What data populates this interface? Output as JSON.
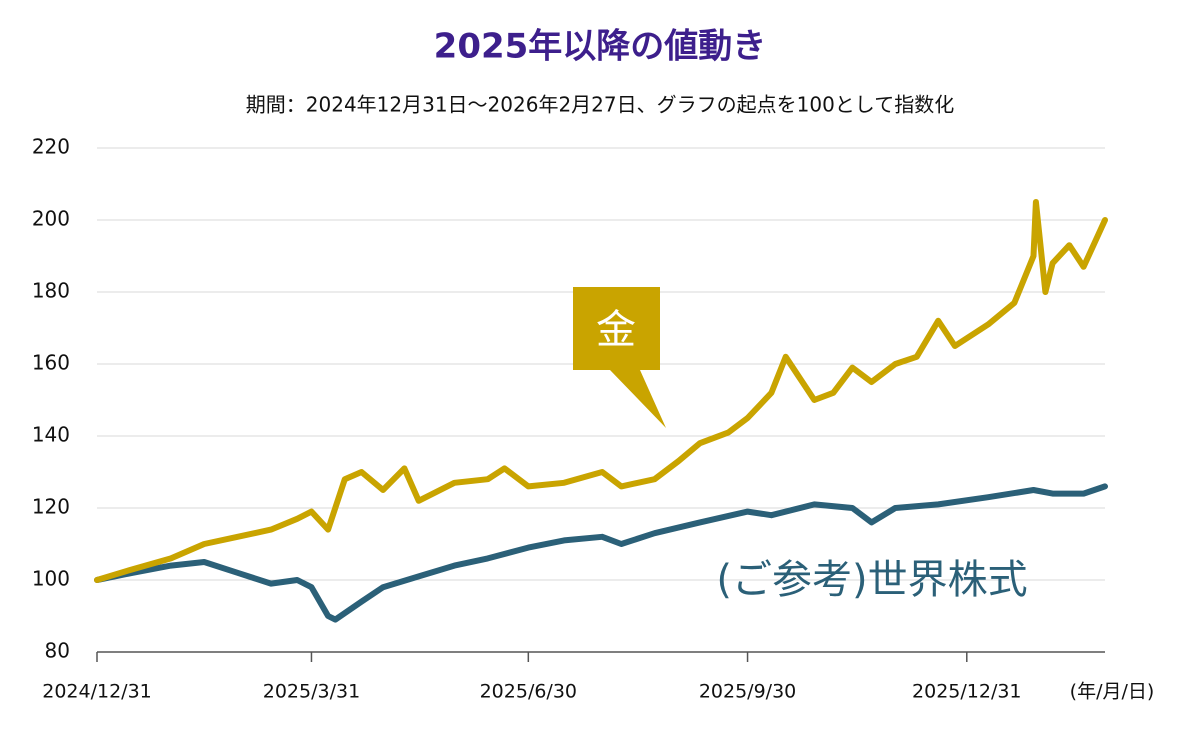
{
  "chart_data": {
    "type": "line",
    "title": "2025年以降の値動き",
    "subtitle": "期間：2024年12月31日〜2026年2月27日、グラフの起点を100として指数化",
    "x_unit_label": "(年/月/日)",
    "xlim": [
      "2024/12/31",
      "2026/2/27"
    ],
    "xticks": [
      "2024/12/31",
      "2025/3/31",
      "2025/6/30",
      "2025/9/30",
      "2025/12/31"
    ],
    "ylim": [
      80,
      220
    ],
    "yticks": [
      80,
      100,
      120,
      140,
      160,
      180,
      200,
      220
    ],
    "grid": true,
    "series": [
      {
        "name": "金",
        "color": "#c9a400",
        "x": [
          "2024/12/31",
          "2025/1/15",
          "2025/1/31",
          "2025/2/14",
          "2025/2/28",
          "2025/3/14",
          "2025/3/25",
          "2025/3/31",
          "2025/4/7",
          "2025/4/14",
          "2025/4/21",
          "2025/4/30",
          "2025/5/9",
          "2025/5/15",
          "2025/5/30",
          "2025/6/13",
          "2025/6/20",
          "2025/6/30",
          "2025/7/15",
          "2025/7/31",
          "2025/8/8",
          "2025/8/22",
          "2025/9/1",
          "2025/9/10",
          "2025/9/22",
          "2025/9/30",
          "2025/10/10",
          "2025/10/16",
          "2025/10/21",
          "2025/10/28",
          "2025/11/5",
          "2025/11/13",
          "2025/11/21",
          "2025/12/1",
          "2025/12/10",
          "2025/12/19",
          "2025/12/26",
          "2026/1/9",
          "2026/1/20",
          "2026/1/28",
          "2026/1/29",
          "2026/2/2",
          "2026/2/5",
          "2026/2/12",
          "2026/2/18",
          "2026/2/27"
        ],
        "values": [
          100,
          103,
          106,
          110,
          112,
          114,
          117,
          119,
          114,
          128,
          130,
          125,
          131,
          122,
          127,
          128,
          131,
          126,
          127,
          130,
          126,
          128,
          133,
          138,
          141,
          145,
          152,
          162,
          157,
          150,
          152,
          159,
          155,
          160,
          162,
          172,
          165,
          171,
          177,
          190,
          205,
          180,
          188,
          193,
          187,
          200
        ]
      },
      {
        "name": "(ご参考)世界株式",
        "color": "#2b6078",
        "x": [
          "2024/12/31",
          "2025/1/15",
          "2025/1/31",
          "2025/2/14",
          "2025/2/28",
          "2025/3/14",
          "2025/3/25",
          "2025/3/31",
          "2025/4/7",
          "2025/4/10",
          "2025/4/21",
          "2025/4/30",
          "2025/5/15",
          "2025/5/30",
          "2025/6/13",
          "2025/6/30",
          "2025/7/15",
          "2025/7/31",
          "2025/8/8",
          "2025/8/22",
          "2025/9/10",
          "2025/9/30",
          "2025/10/10",
          "2025/10/28",
          "2025/11/13",
          "2025/11/21",
          "2025/12/1",
          "2025/12/19",
          "2026/1/9",
          "2026/1/28",
          "2026/2/5",
          "2026/2/18",
          "2026/2/27"
        ],
        "values": [
          100,
          102,
          104,
          105,
          102,
          99,
          100,
          98,
          90,
          89,
          94,
          98,
          101,
          104,
          106,
          109,
          111,
          112,
          110,
          113,
          116,
          119,
          118,
          121,
          120,
          116,
          120,
          121,
          123,
          125,
          124,
          124,
          126
        ]
      }
    ]
  }
}
